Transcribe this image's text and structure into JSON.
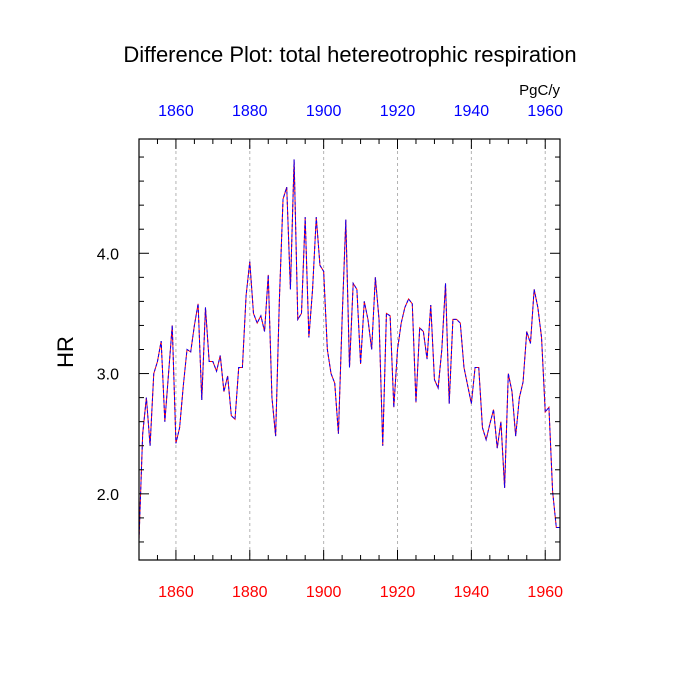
{
  "chart_data": {
    "type": "line",
    "title": "Difference Plot: total hetereotrophic respiration",
    "units": "PgC/y",
    "ylabel": "HR",
    "xlim": [
      1850,
      1964
    ],
    "ylim": [
      1.45,
      4.95
    ],
    "x_ticks": [
      1860,
      1880,
      1900,
      1920,
      1940,
      1960
    ],
    "y_ticks": [
      2.0,
      3.0,
      4.0
    ],
    "y_tick_labels": [
      "2.0",
      "3.0",
      "4.0"
    ],
    "grid": "vertical dashed at x ticks",
    "colors": {
      "bottom_axis_labels": "#ff0000",
      "top_axis_labels": "#0000ff",
      "series_a": "#ff0000",
      "series_b": "#0000ff"
    },
    "series": [
      {
        "line_style": "solid",
        "color": "#ff0000",
        "x": [
          1850,
          1851,
          1852,
          1853,
          1854,
          1855,
          1856,
          1857,
          1858,
          1859,
          1860,
          1861,
          1862,
          1863,
          1864,
          1865,
          1866,
          1867,
          1868,
          1869,
          1870,
          1871,
          1872,
          1873,
          1874,
          1875,
          1876,
          1877,
          1878,
          1879,
          1880,
          1881,
          1882,
          1883,
          1884,
          1885,
          1886,
          1887,
          1888,
          1889,
          1890,
          1891,
          1892,
          1893,
          1894,
          1895,
          1896,
          1897,
          1898,
          1899,
          1900,
          1901,
          1902,
          1903,
          1904,
          1905,
          1906,
          1907,
          1908,
          1909,
          1910,
          1911,
          1912,
          1913,
          1914,
          1915,
          1916,
          1917,
          1918,
          1919,
          1920,
          1921,
          1922,
          1923,
          1924,
          1925,
          1926,
          1927,
          1928,
          1929,
          1930,
          1931,
          1932,
          1933,
          1934,
          1935,
          1936,
          1937,
          1938,
          1939,
          1940,
          1941,
          1942,
          1943,
          1944,
          1945,
          1946,
          1947,
          1948,
          1949,
          1950,
          1951,
          1952,
          1953,
          1954,
          1955,
          1956,
          1957,
          1958,
          1959,
          1960,
          1961,
          1962,
          1963,
          1964
        ],
        "y": [
          1.62,
          2.5,
          2.8,
          2.4,
          3.0,
          3.1,
          3.27,
          2.6,
          3.0,
          3.4,
          2.42,
          2.55,
          2.9,
          3.2,
          3.18,
          3.4,
          3.58,
          2.78,
          3.55,
          3.1,
          3.1,
          3.02,
          3.15,
          2.85,
          2.98,
          2.65,
          2.62,
          3.05,
          3.05,
          3.65,
          3.93,
          3.5,
          3.42,
          3.48,
          3.35,
          3.82,
          2.8,
          2.48,
          3.6,
          4.45,
          4.55,
          3.7,
          4.78,
          3.45,
          3.5,
          4.3,
          3.3,
          3.7,
          4.3,
          3.9,
          3.85,
          3.2,
          3.0,
          2.92,
          2.5,
          3.45,
          4.28,
          3.05,
          3.75,
          3.7,
          3.08,
          3.6,
          3.45,
          3.2,
          3.8,
          3.45,
          2.4,
          3.5,
          3.48,
          2.72,
          3.2,
          3.42,
          3.55,
          3.62,
          3.58,
          2.76,
          3.38,
          3.35,
          3.12,
          3.57,
          2.95,
          2.88,
          3.2,
          3.75,
          2.75,
          3.45,
          3.45,
          3.42,
          3.05,
          2.9,
          2.75,
          3.05,
          3.05,
          2.55,
          2.45,
          2.58,
          2.7,
          2.38,
          2.6,
          2.05,
          3.0,
          2.85,
          2.48,
          2.8,
          2.93,
          3.35,
          3.25,
          3.7,
          3.55,
          3.3,
          2.68,
          2.72,
          2.02,
          1.72,
          1.72
        ]
      },
      {
        "line_style": "dashed",
        "color": "#0000ff",
        "x": [
          1850,
          1851,
          1852,
          1853,
          1854,
          1855,
          1856,
          1857,
          1858,
          1859,
          1860,
          1861,
          1862,
          1863,
          1864,
          1865,
          1866,
          1867,
          1868,
          1869,
          1870,
          1871,
          1872,
          1873,
          1874,
          1875,
          1876,
          1877,
          1878,
          1879,
          1880,
          1881,
          1882,
          1883,
          1884,
          1885,
          1886,
          1887,
          1888,
          1889,
          1890,
          1891,
          1892,
          1893,
          1894,
          1895,
          1896,
          1897,
          1898,
          1899,
          1900,
          1901,
          1902,
          1903,
          1904,
          1905,
          1906,
          1907,
          1908,
          1909,
          1910,
          1911,
          1912,
          1913,
          1914,
          1915,
          1916,
          1917,
          1918,
          1919,
          1920,
          1921,
          1922,
          1923,
          1924,
          1925,
          1926,
          1927,
          1928,
          1929,
          1930,
          1931,
          1932,
          1933,
          1934,
          1935,
          1936,
          1937,
          1938,
          1939,
          1940,
          1941,
          1942,
          1943,
          1944,
          1945,
          1946,
          1947,
          1948,
          1949,
          1950,
          1951,
          1952,
          1953,
          1954,
          1955,
          1956,
          1957,
          1958,
          1959,
          1960,
          1961,
          1962,
          1963,
          1964
        ],
        "y": [
          1.62,
          2.5,
          2.8,
          2.4,
          3.0,
          3.1,
          3.27,
          2.6,
          3.0,
          3.4,
          2.42,
          2.55,
          2.9,
          3.2,
          3.18,
          3.4,
          3.58,
          2.78,
          3.55,
          3.1,
          3.1,
          3.02,
          3.15,
          2.85,
          2.98,
          2.65,
          2.62,
          3.05,
          3.05,
          3.65,
          3.93,
          3.5,
          3.42,
          3.48,
          3.35,
          3.82,
          2.8,
          2.48,
          3.6,
          4.45,
          4.55,
          3.7,
          4.78,
          3.45,
          3.5,
          4.3,
          3.3,
          3.7,
          4.3,
          3.9,
          3.85,
          3.2,
          3.0,
          2.92,
          2.5,
          3.45,
          4.28,
          3.05,
          3.75,
          3.7,
          3.08,
          3.6,
          3.45,
          3.2,
          3.8,
          3.45,
          2.4,
          3.5,
          3.48,
          2.72,
          3.2,
          3.42,
          3.55,
          3.62,
          3.58,
          2.76,
          3.38,
          3.35,
          3.12,
          3.57,
          2.95,
          2.88,
          3.2,
          3.75,
          2.75,
          3.45,
          3.45,
          3.42,
          3.05,
          2.9,
          2.75,
          3.05,
          3.05,
          2.55,
          2.45,
          2.58,
          2.7,
          2.38,
          2.6,
          2.05,
          3.0,
          2.85,
          2.48,
          2.8,
          2.93,
          3.35,
          3.25,
          3.7,
          3.55,
          3.3,
          2.68,
          2.72,
          2.02,
          1.72,
          1.72
        ]
      }
    ]
  }
}
